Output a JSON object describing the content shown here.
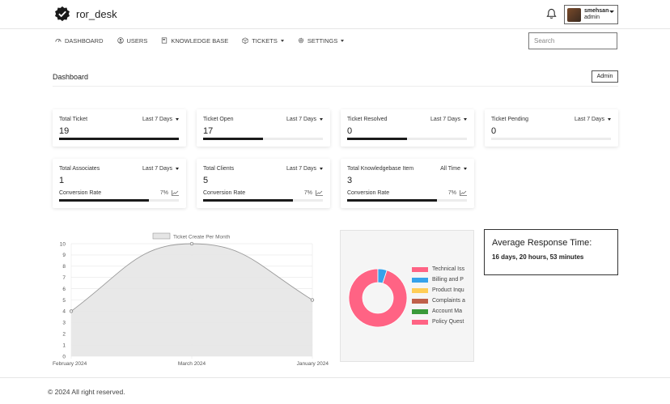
{
  "brand": {
    "name": "ror_desk",
    "icon": "check-badge-icon"
  },
  "user": {
    "name": "smehsan",
    "role": "admin"
  },
  "nav": [
    {
      "label": "DASHBOARD",
      "icon": "dashboard-icon",
      "dropdown": false
    },
    {
      "label": "USERS",
      "icon": "user-circle-icon",
      "dropdown": false
    },
    {
      "label": "KNOWLEDGE BASE",
      "icon": "book-icon",
      "dropdown": false
    },
    {
      "label": "TICKETS",
      "icon": "box-icon",
      "dropdown": true
    },
    {
      "label": "SETTINGS",
      "icon": "gear-icon",
      "dropdown": true
    }
  ],
  "search": {
    "placeholder": "Search"
  },
  "header": {
    "title": "Dashboard",
    "admin_label": "Admin"
  },
  "stats_row1": [
    {
      "title": "Total Ticket",
      "period": "Last 7 Days",
      "value": "19",
      "progress": 1.0
    },
    {
      "title": "Ticket Open",
      "period": "Last 7 Days",
      "value": "17",
      "progress": 0.5
    },
    {
      "title": "Ticket Resolved",
      "period": "Last 7 Days",
      "value": "0",
      "progress": 0.5
    },
    {
      "title": "Ticket Pending",
      "period": "Last 7 Days",
      "value": "0",
      "progress": 0.0
    }
  ],
  "stats_row2": [
    {
      "title": "Total Associates",
      "period": "Last 7 Days",
      "value": "1",
      "conversion_label": "Conversion Rate",
      "conversion_pct": "7%",
      "progress": 0.75
    },
    {
      "title": "Total Clients",
      "period": "Last 7 Days",
      "value": "5",
      "conversion_label": "Conversion Rate",
      "conversion_pct": "7%",
      "progress": 0.75
    },
    {
      "title": "Total Knowledgebase Item",
      "period": "All Time",
      "value": "3",
      "conversion_label": "Conversion Rate",
      "conversion_pct": "7%",
      "progress": 0.75
    }
  ],
  "chart_data": [
    {
      "type": "line",
      "title": "",
      "legend": [
        "Ticket Create Per Month"
      ],
      "categories": [
        "February 2024",
        "March 2024",
        "January 2024"
      ],
      "series": [
        {
          "name": "Ticket Create Per Month",
          "values": [
            4,
            10,
            5
          ]
        }
      ],
      "ylim": [
        0,
        10
      ],
      "yticks": [
        0,
        1,
        2,
        3,
        4,
        5,
        6,
        7,
        8,
        9,
        10
      ],
      "grid": true,
      "fill_color": "#e5e5e5",
      "line_color": "#999999"
    },
    {
      "type": "pie",
      "variant": "doughnut",
      "labels": [
        "Technical Iss",
        "Billing and P",
        "Product Inqu",
        "Complaints a",
        "Account Ma",
        "Policy Quest"
      ],
      "values": [
        95,
        5,
        0,
        0,
        0,
        0
      ],
      "colors": [
        "#ff6384",
        "#36a2eb",
        "#ffcd56",
        "#c0604a",
        "#3a9a3a",
        "#ff6384"
      ],
      "legend_position": "right"
    }
  ],
  "response_time": {
    "title": "Average Response Time:",
    "value": "16 days, 20 hours, 53 minutes"
  },
  "footer": {
    "text": "© 2024 All right reserved."
  }
}
